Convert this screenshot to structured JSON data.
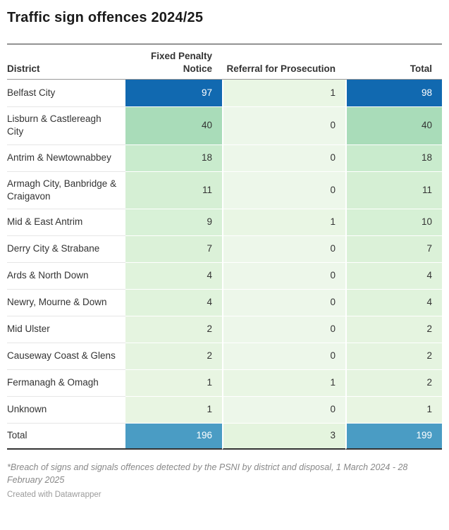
{
  "title": "Traffic sign offences 2024/25",
  "table": {
    "headers": {
      "district": "District",
      "fixed_penalty": "Fixed Penalty Notice",
      "referral": "Referral for Prosecution",
      "total": "Total"
    },
    "rows": [
      {
        "district": "Belfast City",
        "is_total": false,
        "cells": [
          {
            "value": "97",
            "bg": "#1169b0",
            "fg": "#ffffff"
          },
          {
            "value": "1",
            "bg": "#e9f6e4",
            "fg": "#333333"
          },
          {
            "value": "98",
            "bg": "#1169b0",
            "fg": "#ffffff"
          }
        ]
      },
      {
        "district": "Lisburn & Castlereagh City",
        "is_total": false,
        "cells": [
          {
            "value": "40",
            "bg": "#a9dcb9",
            "fg": "#333333"
          },
          {
            "value": "0",
            "bg": "#edf7ea",
            "fg": "#333333"
          },
          {
            "value": "40",
            "bg": "#a9dcb9",
            "fg": "#333333"
          }
        ]
      },
      {
        "district": "Antrim & Newtownabbey",
        "is_total": false,
        "cells": [
          {
            "value": "18",
            "bg": "#c9ebcd",
            "fg": "#333333"
          },
          {
            "value": "0",
            "bg": "#edf7ea",
            "fg": "#333333"
          },
          {
            "value": "18",
            "bg": "#c9ebcd",
            "fg": "#333333"
          }
        ]
      },
      {
        "district": "Armagh City, Banbridge & Craigavon",
        "is_total": false,
        "cells": [
          {
            "value": "11",
            "bg": "#d5efd4",
            "fg": "#333333"
          },
          {
            "value": "0",
            "bg": "#edf7ea",
            "fg": "#333333"
          },
          {
            "value": "11",
            "bg": "#d5efd4",
            "fg": "#333333"
          }
        ]
      },
      {
        "district": "Mid & East Antrim",
        "is_total": false,
        "cells": [
          {
            "value": "9",
            "bg": "#d8f1d7",
            "fg": "#333333"
          },
          {
            "value": "1",
            "bg": "#e9f6e4",
            "fg": "#333333"
          },
          {
            "value": "10",
            "bg": "#d6f0d5",
            "fg": "#333333"
          }
        ]
      },
      {
        "district": "Derry City & Strabane",
        "is_total": false,
        "cells": [
          {
            "value": "7",
            "bg": "#dbf1d8",
            "fg": "#333333"
          },
          {
            "value": "0",
            "bg": "#edf7ea",
            "fg": "#333333"
          },
          {
            "value": "7",
            "bg": "#dbf1d8",
            "fg": "#333333"
          }
        ]
      },
      {
        "district": "Ards & North Down",
        "is_total": false,
        "cells": [
          {
            "value": "4",
            "bg": "#e0f3dc",
            "fg": "#333333"
          },
          {
            "value": "0",
            "bg": "#edf7ea",
            "fg": "#333333"
          },
          {
            "value": "4",
            "bg": "#e0f3dc",
            "fg": "#333333"
          }
        ]
      },
      {
        "district": "Newry, Mourne & Down",
        "is_total": false,
        "cells": [
          {
            "value": "4",
            "bg": "#e0f3dc",
            "fg": "#333333"
          },
          {
            "value": "0",
            "bg": "#edf7ea",
            "fg": "#333333"
          },
          {
            "value": "4",
            "bg": "#e0f3dc",
            "fg": "#333333"
          }
        ]
      },
      {
        "district": "Mid Ulster",
        "is_total": false,
        "cells": [
          {
            "value": "2",
            "bg": "#e5f4e0",
            "fg": "#333333"
          },
          {
            "value": "0",
            "bg": "#edf7ea",
            "fg": "#333333"
          },
          {
            "value": "2",
            "bg": "#e5f4e0",
            "fg": "#333333"
          }
        ]
      },
      {
        "district": "Causeway Coast & Glens",
        "is_total": false,
        "cells": [
          {
            "value": "2",
            "bg": "#e5f4e0",
            "fg": "#333333"
          },
          {
            "value": "0",
            "bg": "#edf7ea",
            "fg": "#333333"
          },
          {
            "value": "2",
            "bg": "#e5f4e0",
            "fg": "#333333"
          }
        ]
      },
      {
        "district": "Fermanagh & Omagh",
        "is_total": false,
        "cells": [
          {
            "value": "1",
            "bg": "#e8f5e2",
            "fg": "#333333"
          },
          {
            "value": "1",
            "bg": "#e9f6e4",
            "fg": "#333333"
          },
          {
            "value": "2",
            "bg": "#e5f4e0",
            "fg": "#333333"
          }
        ]
      },
      {
        "district": "Unknown",
        "is_total": false,
        "cells": [
          {
            "value": "1",
            "bg": "#e8f5e2",
            "fg": "#333333"
          },
          {
            "value": "0",
            "bg": "#edf7ea",
            "fg": "#333333"
          },
          {
            "value": "1",
            "bg": "#e8f5e2",
            "fg": "#333333"
          }
        ]
      },
      {
        "district": "Total",
        "is_total": true,
        "cells": [
          {
            "value": "196",
            "bg": "#4a9cc4",
            "fg": "#ffffff"
          },
          {
            "value": "3",
            "bg": "#e4f4de",
            "fg": "#333333"
          },
          {
            "value": "199",
            "bg": "#4a9cc4",
            "fg": "#ffffff"
          }
        ]
      }
    ]
  },
  "footer": {
    "note": "*Breach of signs and signals offences detected by the PSNI by district and disposal, 1 March 2024 - 28 February 2025",
    "credit": "Created with Datawrapper"
  },
  "colors": {
    "heat_high_blue": "#1169b0",
    "total_blue": "#4a9cc4",
    "heat_green_mid": "#a9dcb9",
    "heat_green_low": "#edf7ea"
  },
  "chart_data": {
    "type": "table",
    "title": "Traffic sign offences 2024/25",
    "columns": [
      "District",
      "Fixed Penalty Notice",
      "Referral for Prosecution",
      "Total"
    ],
    "rows": [
      [
        "Belfast City",
        97,
        1,
        98
      ],
      [
        "Lisburn & Castlereagh City",
        40,
        0,
        40
      ],
      [
        "Antrim & Newtownabbey",
        18,
        0,
        18
      ],
      [
        "Armagh City, Banbridge & Craigavon",
        11,
        0,
        11
      ],
      [
        "Mid & East Antrim",
        9,
        1,
        10
      ],
      [
        "Derry City & Strabane",
        7,
        0,
        7
      ],
      [
        "Ards & North Down",
        4,
        0,
        4
      ],
      [
        "Newry, Mourne & Down",
        4,
        0,
        4
      ],
      [
        "Mid Ulster",
        2,
        0,
        2
      ],
      [
        "Causeway Coast & Glens",
        2,
        0,
        2
      ],
      [
        "Fermanagh & Omagh",
        1,
        1,
        2
      ],
      [
        "Unknown",
        1,
        0,
        1
      ],
      [
        "Total",
        196,
        3,
        199
      ]
    ],
    "note": "*Breach of signs and signals offences detected by the PSNI by district and disposal, 1 March 2024 - 28 February 2025",
    "credit": "Created with Datawrapper",
    "heatmap": true,
    "legend_position": "none"
  }
}
